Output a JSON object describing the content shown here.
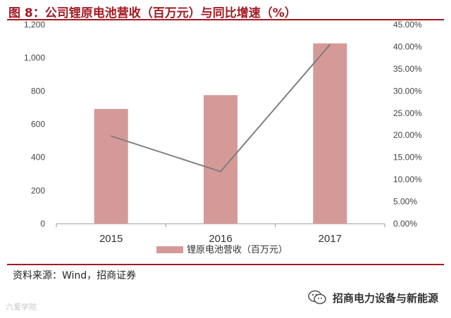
{
  "header": {
    "title": "图 8：公司锂原电池营收（百万元）与同比增速（%）"
  },
  "chart_data": {
    "type": "bar",
    "categories": [
      "2015",
      "2016",
      "2017"
    ],
    "series": [
      {
        "name": "锂原电池营收（百万元）",
        "type": "bar",
        "axis": "left",
        "values": [
          692,
          775,
          1087
        ],
        "color": "#d59a98"
      },
      {
        "name": "",
        "type": "line",
        "axis": "right",
        "values": [
          19.8,
          11.8,
          40.5
        ],
        "color": "#7f7f7f"
      }
    ],
    "y_left": {
      "min": 0,
      "max": 1200,
      "ticks": [
        "0",
        "200",
        "400",
        "600",
        "800",
        "1,000",
        "1,200"
      ]
    },
    "y_right": {
      "min": 0,
      "max": 45,
      "ticks": [
        "0.00%",
        "5.00%",
        "10.00%",
        "15.00%",
        "20.00%",
        "25.00%",
        "30.00%",
        "35.00%",
        "40.00%",
        "45.00%"
      ]
    },
    "legend": "bottom-center",
    "grid": false
  },
  "footer": {
    "source": "资料来源：Wind，招商证券",
    "brand": "招商电力设备与新能源",
    "watermark": "六爱学院"
  }
}
